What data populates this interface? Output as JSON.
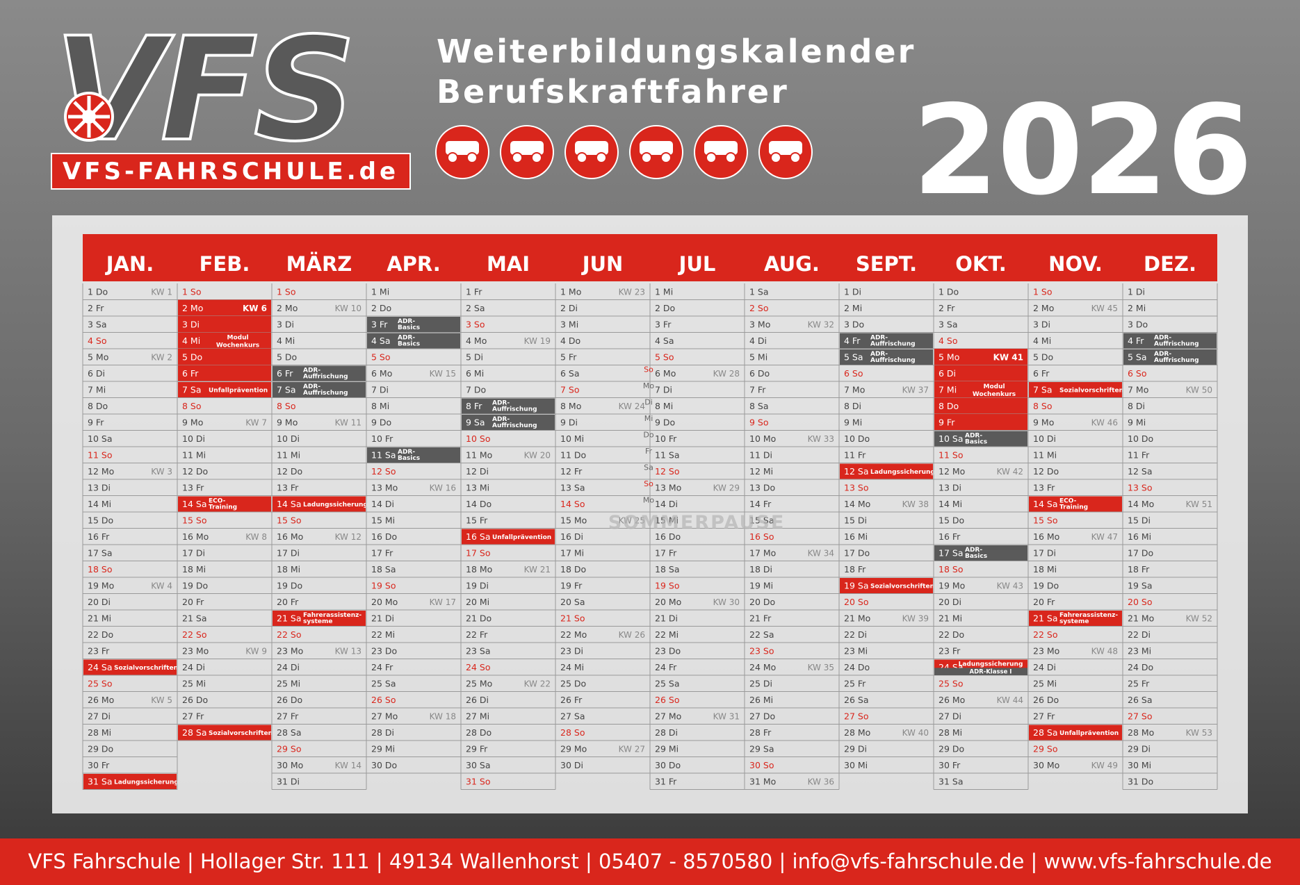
{
  "header": {
    "logo": "VFS",
    "logo_url": "VFS-FAHRSCHULE.de",
    "title_1": "Weiterbildungskalender",
    "title_2": "Berufskraftfahrer",
    "year": "2026"
  },
  "calendar": {
    "sommerpause": "SOMMERPAUSE",
    "sommer_days": [
      "So",
      "Mo",
      "Di",
      "Mi",
      "Do",
      "Fr",
      "Sa",
      "So",
      "Mo"
    ],
    "months": [
      {
        "name": "JAN.",
        "days": [
          "1 Do",
          "2 Fr",
          "3 Sa",
          "4 So",
          "5 Mo",
          "6 Di",
          "7 Mi",
          "8 Do",
          "9 Fr",
          "10 Sa",
          "11 So",
          "12 Mo",
          "13 Di",
          "14 Mi",
          "15 Do",
          "16 Fr",
          "17 Sa",
          "18 So",
          "19 Mo",
          "20 Di",
          "21 Mi",
          "22 Do",
          "23 Fr",
          "24 Sa",
          "25 So",
          "26 Mo",
          "27 Di",
          "28 Mi",
          "29 Do",
          "30 Fr",
          "31 Sa"
        ],
        "kw": {
          "0": "KW 1",
          "4": "KW 2",
          "11": "KW 3",
          "18": "KW 4",
          "25": "KW 5"
        },
        "events": {
          "23": {
            "label": "Sozialvorschriften",
            "style": "red"
          },
          "30": {
            "label": "Ladungssicherung",
            "style": "red"
          }
        }
      },
      {
        "name": "FEB.",
        "days": [
          "1 So",
          "2 Mo",
          "3 Di",
          "4 Mi",
          "5 Do",
          "6 Fr",
          "7 Sa",
          "8 So",
          "9 Mo",
          "10 Di",
          "11 Mi",
          "12 Do",
          "13 Fr",
          "14 Sa",
          "15 So",
          "16 Mo",
          "17 Di",
          "18 Mi",
          "19 Do",
          "20 Fr",
          "21 Sa",
          "22 So",
          "23 Mo",
          "24 Di",
          "25 Mi",
          "26 Do",
          "27 Fr",
          "28 Sa"
        ],
        "kw": {
          "1": "KW 6",
          "8": "KW 7",
          "15": "KW 8",
          "22": "KW 9"
        },
        "blocks": [
          {
            "from": 1,
            "to": 5,
            "label": "Modul Wochenkurs"
          }
        ],
        "events": {
          "6": {
            "label": "Unfallprävention",
            "style": "red"
          },
          "13": {
            "label": "ECO-Training",
            "style": "red"
          },
          "27": {
            "label": "Sozialvorschriften",
            "style": "red"
          }
        }
      },
      {
        "name": "MÄRZ",
        "days": [
          "1 So",
          "2 Mo",
          "3 Di",
          "4 Mi",
          "5 Do",
          "6 Fr",
          "7 Sa",
          "8 So",
          "9 Mo",
          "10 Di",
          "11 Mi",
          "12 Do",
          "13 Fr",
          "14 Sa",
          "15 So",
          "16 Mo",
          "17 Di",
          "18 Mi",
          "19 Do",
          "20 Fr",
          "21 Sa",
          "22 So",
          "23 Mo",
          "24 Di",
          "25 Mi",
          "26 Do",
          "27 Fr",
          "28 Sa",
          "29 So",
          "30 Mo",
          "31 Di"
        ],
        "kw": {
          "1": "KW 10",
          "8": "KW 11",
          "15": "KW 12",
          "22": "KW 13",
          "29": "KW 14"
        },
        "events": {
          "5": {
            "label": "ADR-Auffrischung",
            "style": "dark"
          },
          "6": {
            "label": "ADR-Auffrischung",
            "style": "dark"
          },
          "13": {
            "label": "Ladungssicherung",
            "style": "red"
          },
          "20": {
            "label": "Fahrerassistenz-systeme",
            "style": "red"
          }
        }
      },
      {
        "name": "APR.",
        "days": [
          "1 Mi",
          "2 Do",
          "3 Fr",
          "4 Sa",
          "5 So",
          "6 Mo",
          "7 Di",
          "8 Mi",
          "9 Do",
          "10 Fr",
          "11 Sa",
          "12 So",
          "13 Mo",
          "14 Di",
          "15 Mi",
          "16 Do",
          "17 Fr",
          "18 Sa",
          "19 So",
          "20 Mo",
          "21 Di",
          "22 Mi",
          "23 Do",
          "24 Fr",
          "25 Sa",
          "26 So",
          "27 Mo",
          "28 Di",
          "29 Mi",
          "30 Do"
        ],
        "kw": {
          "5": "KW 15",
          "12": "KW 16",
          "19": "KW 17",
          "26": "KW 18"
        },
        "events": {
          "2": {
            "label": "ADR-Basics",
            "style": "dark"
          },
          "3": {
            "label": "ADR-Basics",
            "style": "dark"
          },
          "10": {
            "label": "ADR-Basics",
            "style": "dark"
          }
        }
      },
      {
        "name": "MAI",
        "days": [
          "1 Fr",
          "2 Sa",
          "3 So",
          "4 Mo",
          "5 Di",
          "6 Mi",
          "7 Do",
          "8 Fr",
          "9 Sa",
          "10 So",
          "11 Mo",
          "12 Di",
          "13 Mi",
          "14 Do",
          "15 Fr",
          "16 Sa",
          "17 So",
          "18 Mo",
          "19 Di",
          "20 Mi",
          "21 Do",
          "22 Fr",
          "23 Sa",
          "24 So",
          "25 Mo",
          "26 Di",
          "27 Mi",
          "28 Do",
          "29 Fr",
          "30 Sa",
          "31 So"
        ],
        "kw": {
          "3": "KW 19",
          "10": "KW 20",
          "17": "KW 21",
          "24": "KW 22"
        },
        "events": {
          "7": {
            "label": "ADR-Auffrischung",
            "style": "dark"
          },
          "8": {
            "label": "ADR-Auffrischung",
            "style": "dark"
          },
          "15": {
            "label": "Unfallprävention",
            "style": "red"
          }
        }
      },
      {
        "name": "JUN",
        "days": [
          "1 Mo",
          "2 Di",
          "3 Mi",
          "4 Do",
          "5 Fr",
          "6 Sa",
          "7 So",
          "8 Mo",
          "9 Di",
          "10 Mi",
          "11 Do",
          "12 Fr",
          "13 Sa",
          "14 So",
          "15 Mo",
          "16 Di",
          "17 Mi",
          "18 Do",
          "19 Fr",
          "20 Sa",
          "21 So",
          "22 Mo",
          "23 Di",
          "24 Mi",
          "25 Do",
          "26 Fr",
          "27 Sa",
          "28 So",
          "29 Mo",
          "30 Di"
        ],
        "kw": {
          "0": "KW 23",
          "7": "KW 24",
          "14": "KW 25",
          "21": "KW 26",
          "28": "KW 27"
        }
      },
      {
        "name": "JUL",
        "days": [
          "1 Mi",
          "2 Do",
          "3 Fr",
          "4 Sa",
          "5 So",
          "6 Mo",
          "7 Di",
          "8 Mi",
          "9 Do",
          "10 Fr",
          "11 Sa",
          "12 So",
          "13 Mo",
          "14 Di",
          "15 Mi",
          "16 Do",
          "17 Fr",
          "18 Sa",
          "19 So",
          "20 Mo",
          "21 Di",
          "22 Mi",
          "23 Do",
          "24 Fr",
          "25 Sa",
          "26 So",
          "27 Mo",
          "28 Di",
          "29 Mi",
          "30 Do",
          "31 Fr"
        ],
        "kw": {
          "5": "KW 28",
          "12": "KW 29",
          "19": "KW 30",
          "26": "KW 31"
        }
      },
      {
        "name": "AUG.",
        "days": [
          "1 Sa",
          "2 So",
          "3 Mo",
          "4 Di",
          "5 Mi",
          "6 Do",
          "7 Fr",
          "8 Sa",
          "9 So",
          "10 Mo",
          "11 Di",
          "12 Mi",
          "13 Do",
          "14 Fr",
          "15 Sa",
          "16 So",
          "17 Mo",
          "18 Di",
          "19 Mi",
          "20 Do",
          "21 Fr",
          "22 Sa",
          "23 So",
          "24 Mo",
          "25 Di",
          "26 Mi",
          "27 Do",
          "28 Fr",
          "29 Sa",
          "30 So",
          "31 Mo"
        ],
        "kw": {
          "2": "KW 32",
          "9": "KW 33",
          "16": "KW 34",
          "23": "KW 35",
          "30": "KW 36"
        }
      },
      {
        "name": "SEPT.",
        "days": [
          "1 Di",
          "2 Mi",
          "3 Do",
          "4 Fr",
          "5 Sa",
          "6 So",
          "7 Mo",
          "8 Di",
          "9 Mi",
          "10 Do",
          "11 Fr",
          "12 Sa",
          "13 So",
          "14 Mo",
          "15 Di",
          "16 Mi",
          "17 Do",
          "18 Fr",
          "19 Sa",
          "20 So",
          "21 Mo",
          "22 Di",
          "23 Mi",
          "24 Do",
          "25 Fr",
          "26 Sa",
          "27 So",
          "28 Mo",
          "29 Di",
          "30 Mi"
        ],
        "kw": {
          "6": "KW 37",
          "13": "KW 38",
          "20": "KW 39",
          "27": "KW 40"
        },
        "events": {
          "3": {
            "label": "ADR-Auffrischung",
            "style": "dark"
          },
          "4": {
            "label": "ADR-Auffrischung",
            "style": "dark"
          },
          "11": {
            "label": "Ladungssicherung",
            "style": "red"
          },
          "18": {
            "label": "Sozialvorschriften",
            "style": "red"
          }
        }
      },
      {
        "name": "OKT.",
        "days": [
          "1 Do",
          "2 Fr",
          "3 Sa",
          "4 So",
          "5 Mo",
          "6 Di",
          "7 Mi",
          "8 Do",
          "9 Fr",
          "10 Sa",
          "11 So",
          "12 Mo",
          "13 Di",
          "14 Mi",
          "15 Do",
          "16 Fr",
          "17 Sa",
          "18 So",
          "19 Mo",
          "20 Di",
          "21 Mi",
          "22 Do",
          "23 Fr",
          "24 Sa",
          "25 So",
          "26 Mo",
          "27 Di",
          "28 Mi",
          "29 Do",
          "30 Fr",
          "31 Sa"
        ],
        "kw": {
          "4": "KW 41",
          "11": "KW 42",
          "18": "KW 43",
          "25": "KW 44"
        },
        "blocks": [
          {
            "from": 4,
            "to": 8,
            "label": "Modul Wochenkurs"
          }
        ],
        "events": {
          "9": {
            "label": "ADR-Basics",
            "style": "dark"
          },
          "16": {
            "label": "ADR-Basics",
            "style": "dark"
          },
          "23": {
            "label": "Ladungssicherung",
            "label_2": "ADR-Klasse I",
            "style": "red"
          }
        }
      },
      {
        "name": "NOV.",
        "days": [
          "1 So",
          "2 Mo",
          "3 Di",
          "4 Mi",
          "5 Do",
          "6 Fr",
          "7 Sa",
          "8 So",
          "9 Mo",
          "10 Di",
          "11 Mi",
          "12 Do",
          "13 Fr",
          "14 Sa",
          "15 So",
          "16 Mo",
          "17 Di",
          "18 Mi",
          "19 Do",
          "20 Fr",
          "21 Sa",
          "22 So",
          "23 Mo",
          "24 Di",
          "25 Mi",
          "26 Do",
          "27 Fr",
          "28 Sa",
          "29 So",
          "30 Mo"
        ],
        "kw": {
          "1": "KW 45",
          "8": "KW 46",
          "15": "KW 47",
          "22": "KW 48",
          "29": "KW 49"
        },
        "events": {
          "6": {
            "label": "Sozialvorschriften",
            "style": "red"
          },
          "13": {
            "label": "ECO-Training",
            "style": "red"
          },
          "20": {
            "label": "Fahrerassistenz-systeme",
            "style": "red"
          },
          "27": {
            "label": "Unfallprävention",
            "style": "red"
          }
        }
      },
      {
        "name": "DEZ.",
        "days": [
          "1 Di",
          "2 Mi",
          "3 Do",
          "4 Fr",
          "5 Sa",
          "6 So",
          "7 Mo",
          "8 Di",
          "9 Mi",
          "10 Do",
          "11 Fr",
          "12 Sa",
          "13 So",
          "14 Mo",
          "15 Di",
          "16 Mi",
          "17 Do",
          "18 Fr",
          "19 Sa",
          "20 So",
          "21 Mo",
          "22 Di",
          "23 Mi",
          "24 Do",
          "25 Fr",
          "26 Sa",
          "27 So",
          "28 Mo",
          "29 Di",
          "30 Mi",
          "31 Do"
        ],
        "kw": {
          "6": "KW 50",
          "13": "KW 51",
          "20": "KW 52",
          "27": "KW 53"
        },
        "events": {
          "3": {
            "label": "ADR-Auffrischung",
            "style": "dark"
          },
          "4": {
            "label": "ADR-Auffrischung",
            "style": "dark"
          }
        }
      }
    ]
  },
  "footer": "VFS Fahrschule | Hollager Str. 111 | 49134 Wallenhorst | 05407 - 8570580 | info@vfs-fahrschule.de | www.vfs-fahrschule.de"
}
